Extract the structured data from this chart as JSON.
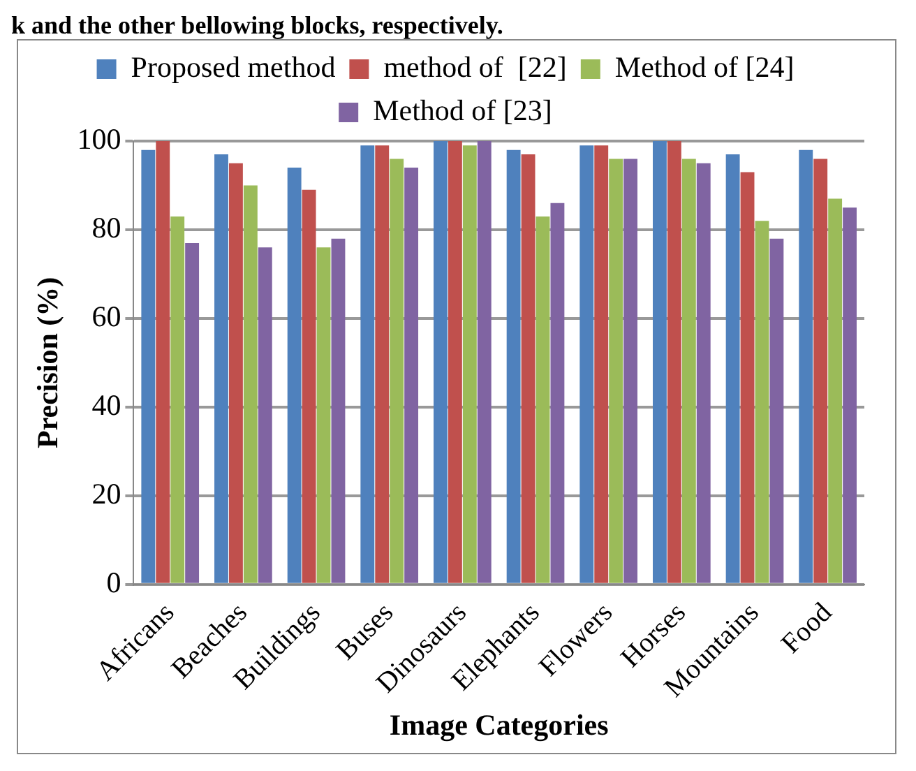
{
  "chart_data": {
    "type": "bar",
    "annotations": [
      "k and the other bellowing blocks, respectively."
    ],
    "xlabel": "Image Categories",
    "ylabel": "Precision (%)",
    "categories": [
      "Africans",
      "Beaches",
      "Buildings",
      "Buses",
      "Dinosaurs",
      "Elephants",
      "Flowers",
      "Horses",
      "Mountains",
      "Food"
    ],
    "series": [
      {
        "name": "Proposed method",
        "color": "#4f81bd",
        "values": [
          98,
          97,
          94,
          99,
          100,
          98,
          99,
          100,
          97,
          98
        ]
      },
      {
        "name": "method of  [22]",
        "color": "#c0504d",
        "values": [
          100,
          95,
          89,
          99,
          100,
          97,
          99,
          100,
          93,
          96
        ]
      },
      {
        "name": "Method of [24]",
        "color": "#9bbb59",
        "values": [
          83,
          90,
          76,
          96,
          99,
          83,
          96,
          96,
          82,
          87
        ]
      },
      {
        "name": "Method of [23]",
        "color": "#8064a2",
        "values": [
          77,
          76,
          78,
          94,
          100,
          86,
          96,
          95,
          78,
          85
        ]
      }
    ],
    "ylim": [
      0,
      100
    ],
    "yticks": [
      0,
      20,
      40,
      60,
      80,
      100
    ],
    "grid": "y",
    "legend": "top"
  }
}
